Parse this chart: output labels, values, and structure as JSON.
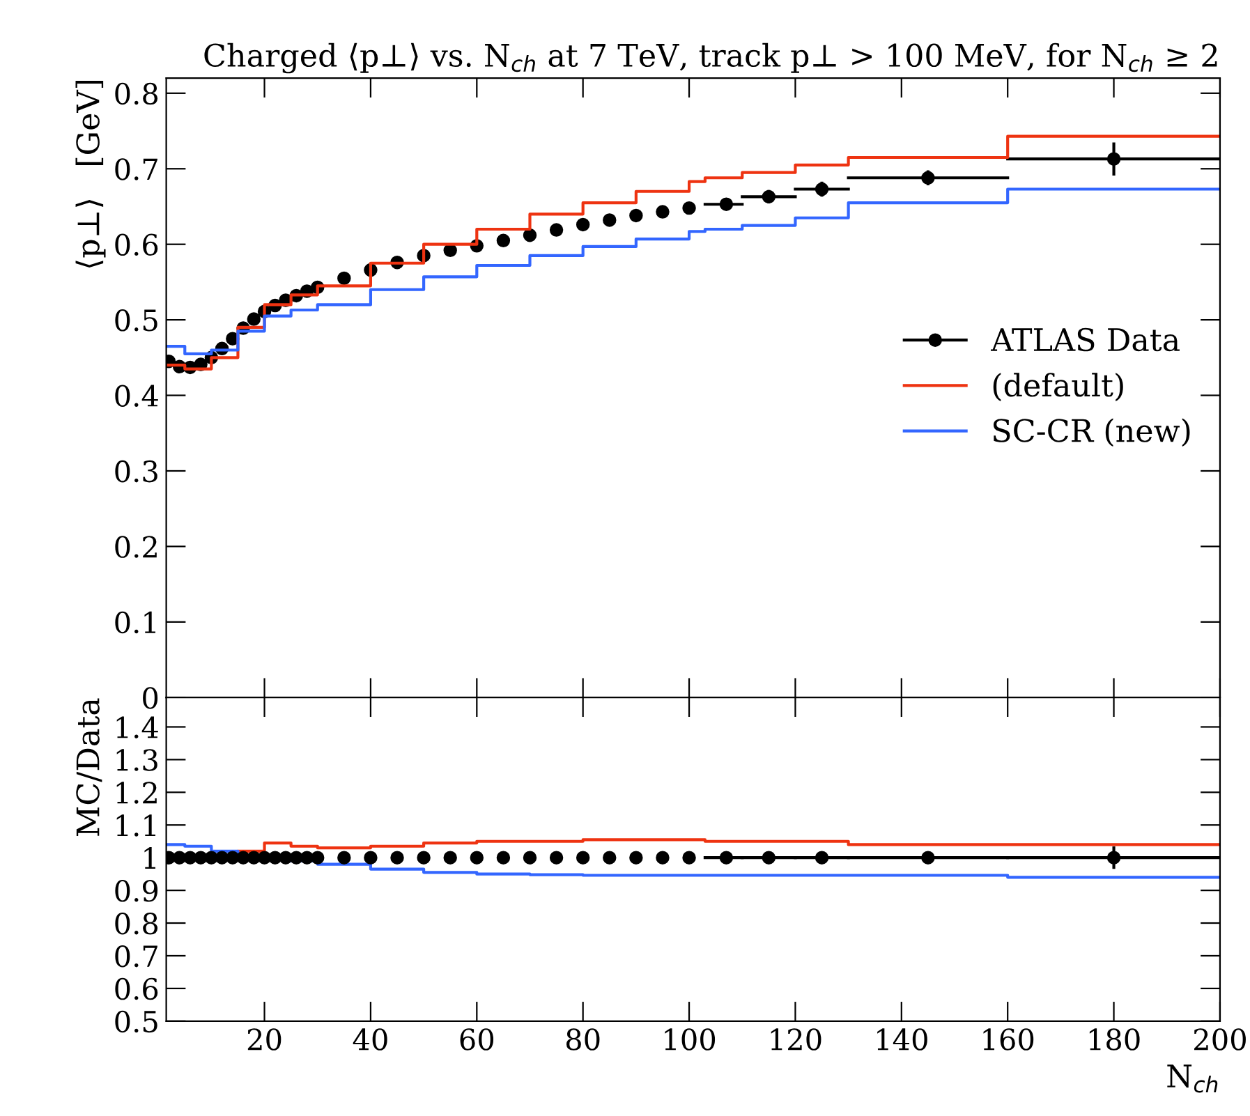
{
  "chart_data": [
    {
      "type": "scatter",
      "title": "Charged ⟨p⊥⟩ vs. N$_{ch}$ at 7 TeV, track p⊥ > 100 MeV, for N$_{ch}$ ≥ 2",
      "ylabel": "⟨p⊥⟩   [GeV]",
      "xlim": [
        1.5,
        200
      ],
      "ylim": [
        0,
        0.82
      ],
      "yticks": [
        0,
        0.1,
        0.2,
        0.3,
        0.4,
        0.5,
        0.6,
        0.7,
        0.8
      ],
      "xticks": [
        20,
        40,
        60,
        80,
        100,
        120,
        140,
        160,
        180,
        200
      ],
      "tick_labels": "y",
      "legend": "right",
      "grid": false,
      "series": [
        {
          "name": "ATLAS Data",
          "color": "#000000",
          "marker": "circle",
          "x": [
            2,
            4,
            6,
            8,
            10,
            12,
            14,
            16,
            18,
            20,
            22,
            24,
            26,
            28,
            30,
            35,
            40,
            45,
            50,
            55,
            60,
            65,
            70,
            75,
            80,
            85,
            90,
            95,
            100,
            107,
            115,
            125,
            145,
            180
          ],
          "values": [
            0.445,
            0.438,
            0.437,
            0.441,
            0.45,
            0.462,
            0.475,
            0.489,
            0.501,
            0.511,
            0.519,
            0.526,
            0.532,
            0.538,
            0.543,
            0.555,
            0.566,
            0.576,
            0.585,
            0.592,
            0.598,
            0.605,
            0.612,
            0.619,
            0.626,
            0.632,
            0.638,
            0.643,
            0.648,
            0.653,
            0.663,
            0.673,
            0.688,
            0.713
          ],
          "errors": [
            null,
            null,
            null,
            null,
            null,
            null,
            null,
            null,
            null,
            null,
            null,
            null,
            null,
            null,
            null,
            null,
            null,
            null,
            null,
            null,
            null,
            null,
            null,
            null,
            null,
            null,
            null,
            null,
            null,
            0.006,
            0.007,
            0.008,
            0.008,
            0.02
          ],
          "xerrors": [
            null,
            null,
            null,
            null,
            null,
            null,
            null,
            null,
            null,
            null,
            null,
            null,
            null,
            null,
            null,
            null,
            null,
            null,
            null,
            null,
            null,
            null,
            null,
            null,
            null,
            null,
            null,
            null,
            null,
            [
              103,
              110
            ],
            [
              110,
              120
            ],
            [
              120,
              130
            ],
            [
              130,
              160
            ],
            [
              160,
              200
            ]
          ]
        },
        {
          "name": "(default)",
          "type": "step",
          "color": "#ee3311",
          "x": [
            1.5,
            5,
            10,
            15,
            20,
            25,
            30,
            40,
            50,
            60,
            70,
            80,
            90,
            100,
            103,
            110,
            120,
            130,
            160,
            200
          ],
          "values": [
            0.44,
            0.435,
            0.45,
            0.49,
            0.52,
            0.533,
            0.545,
            0.575,
            0.6,
            0.62,
            0.64,
            0.655,
            0.67,
            0.683,
            0.688,
            0.695,
            0.705,
            0.715,
            0.743,
            0.743
          ]
        },
        {
          "name": "SC-CR (new)",
          "type": "step",
          "color": "#3366ff",
          "x": [
            1.5,
            5,
            10,
            15,
            20,
            25,
            30,
            40,
            50,
            60,
            70,
            80,
            90,
            100,
            103,
            110,
            120,
            130,
            160,
            200
          ],
          "values": [
            0.465,
            0.455,
            0.46,
            0.485,
            0.505,
            0.513,
            0.52,
            0.54,
            0.557,
            0.572,
            0.585,
            0.597,
            0.607,
            0.617,
            0.62,
            0.625,
            0.635,
            0.655,
            0.673,
            0.673
          ]
        }
      ]
    },
    {
      "type": "step",
      "ylabel": "MC/Data",
      "xlabel": "N$_{ch}$",
      "xlim": [
        1.5,
        200
      ],
      "ylim": [
        0.5,
        1.49
      ],
      "yticks": [
        0.5,
        0.6,
        0.7,
        0.8,
        0.9,
        1,
        1.1,
        1.2,
        1.3,
        1.4
      ],
      "xticks": [
        20,
        40,
        60,
        80,
        100,
        120,
        140,
        160,
        180,
        200
      ],
      "grid": false,
      "series": [
        {
          "color": "#ee3311",
          "x": [
            10,
            15,
            20,
            25,
            30,
            40,
            50,
            60,
            70,
            80,
            90,
            100,
            103,
            110,
            120,
            130,
            160,
            200
          ],
          "values": [
            1.0,
            1.02,
            1.045,
            1.035,
            1.03,
            1.035,
            1.045,
            1.05,
            1.05,
            1.055,
            1.055,
            1.055,
            1.05,
            1.05,
            1.05,
            1.04,
            1.04,
            1.04
          ]
        },
        {
          "color": "#3366ff",
          "x": [
            1.5,
            5,
            10,
            15,
            20,
            25,
            30,
            40,
            50,
            60,
            70,
            80,
            90,
            100,
            103,
            110,
            120,
            130,
            160,
            200
          ],
          "values": [
            1.04,
            1.035,
            1.02,
            1.005,
            1.0,
            0.99,
            0.98,
            0.965,
            0.955,
            0.95,
            0.948,
            0.946,
            0.946,
            0.946,
            0.946,
            0.946,
            0.946,
            0.946,
            0.94,
            0.94
          ]
        },
        {
          "type": "scatter",
          "color": "#000000",
          "marker": "circle",
          "x": [
            2,
            4,
            6,
            8,
            10,
            12,
            14,
            16,
            18,
            20,
            22,
            24,
            26,
            28,
            30,
            35,
            40,
            45,
            50,
            55,
            60,
            65,
            70,
            75,
            80,
            85,
            90,
            95,
            100,
            107,
            115,
            125,
            145,
            180
          ],
          "values": [
            1,
            1,
            1,
            1,
            1,
            1,
            1,
            1,
            1,
            1,
            1,
            1,
            1,
            1,
            1,
            1,
            1,
            1,
            1,
            1,
            1,
            1,
            1,
            1,
            1,
            1,
            1,
            1,
            1,
            1,
            1,
            1,
            1,
            1
          ],
          "errors": [
            null,
            null,
            null,
            null,
            null,
            null,
            null,
            null,
            null,
            null,
            null,
            null,
            null,
            null,
            null,
            null,
            null,
            null,
            null,
            null,
            null,
            null,
            null,
            null,
            null,
            null,
            null,
            null,
            null,
            null,
            null,
            null,
            null,
            0.03
          ],
          "xerrors": [
            null,
            null,
            null,
            null,
            null,
            null,
            null,
            null,
            null,
            null,
            null,
            null,
            null,
            null,
            null,
            null,
            null,
            null,
            null,
            null,
            null,
            null,
            null,
            null,
            null,
            null,
            null,
            null,
            null,
            [
              103,
              110
            ],
            [
              110,
              120
            ],
            [
              120,
              130
            ],
            [
              130,
              160
            ],
            [
              160,
              200
            ]
          ]
        }
      ]
    }
  ]
}
